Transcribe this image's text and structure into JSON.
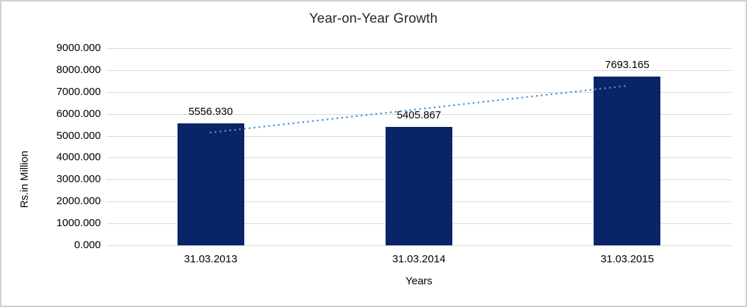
{
  "frame": {
    "background": "#ffffff",
    "border_color": "#d1cfcf"
  },
  "chart_data": {
    "type": "bar",
    "title": "Year-on-Year Growth",
    "xlabel": "Years",
    "ylabel": "Rs.in Million",
    "categories": [
      "31.03.2013",
      "31.03.2014",
      "31.03.2015"
    ],
    "series": [
      {
        "name": "Rs.in Million",
        "values": [
          5556.93,
          5405.867,
          7693.165
        ]
      }
    ],
    "data_labels": [
      "5556.930",
      "5405.867",
      "7693.165"
    ],
    "ylim": [
      0,
      9000
    ],
    "y_tick_step": 1000,
    "y_tick_labels": [
      "0.000",
      "1000.000",
      "2000.000",
      "3000.000",
      "4000.000",
      "5000.000",
      "6000.000",
      "7000.000",
      "8000.000",
      "9000.000"
    ],
    "grid": true,
    "legend": "none",
    "bar_color": "#0a2468",
    "gridline_color": "#d9d9d9",
    "axis_line_color": "#d9d9d9",
    "text_color": "#000000",
    "title_color": "#262626",
    "trendline": {
      "style": "dotted",
      "color": "#5093d6",
      "start_value": 5150.5,
      "end_value": 7286.8
    }
  }
}
